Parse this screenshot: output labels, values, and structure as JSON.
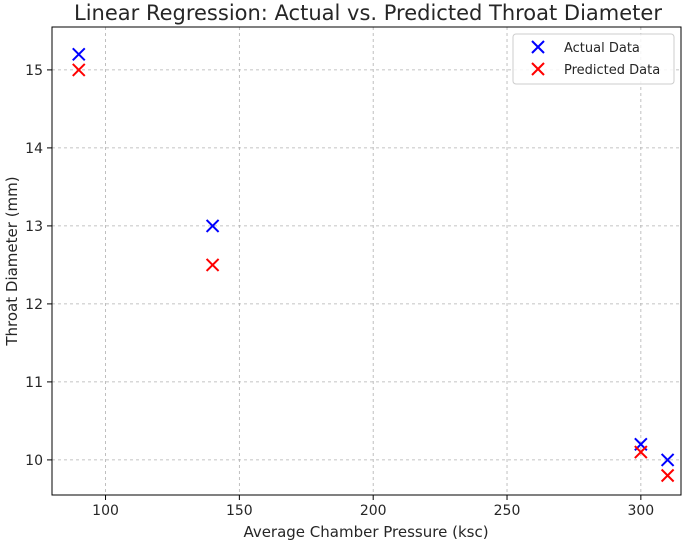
{
  "chart_data": {
    "type": "scatter",
    "title": "Linear Regression: Actual vs. Predicted Throat Diameter",
    "xlabel": "Average Chamber Pressure (ksc)",
    "ylabel": "Throat Diameter (mm)",
    "xlim": [
      80,
      315
    ],
    "ylim": [
      9.55,
      15.55
    ],
    "xticks": [
      100,
      150,
      200,
      250,
      300
    ],
    "yticks": [
      10,
      11,
      12,
      13,
      14,
      15
    ],
    "grid": true,
    "legend_position": "top-right",
    "marker": "x",
    "series": [
      {
        "name": "Actual Data",
        "color": "#0000ff",
        "points": [
          [
            90,
            15.2
          ],
          [
            140,
            13.0
          ],
          [
            300,
            10.2
          ],
          [
            310,
            10.0
          ]
        ]
      },
      {
        "name": "Predicted Data",
        "color": "#ff0000",
        "points": [
          [
            90,
            15.0
          ],
          [
            140,
            12.5
          ],
          [
            300,
            10.1
          ],
          [
            310,
            9.8
          ]
        ]
      }
    ]
  }
}
